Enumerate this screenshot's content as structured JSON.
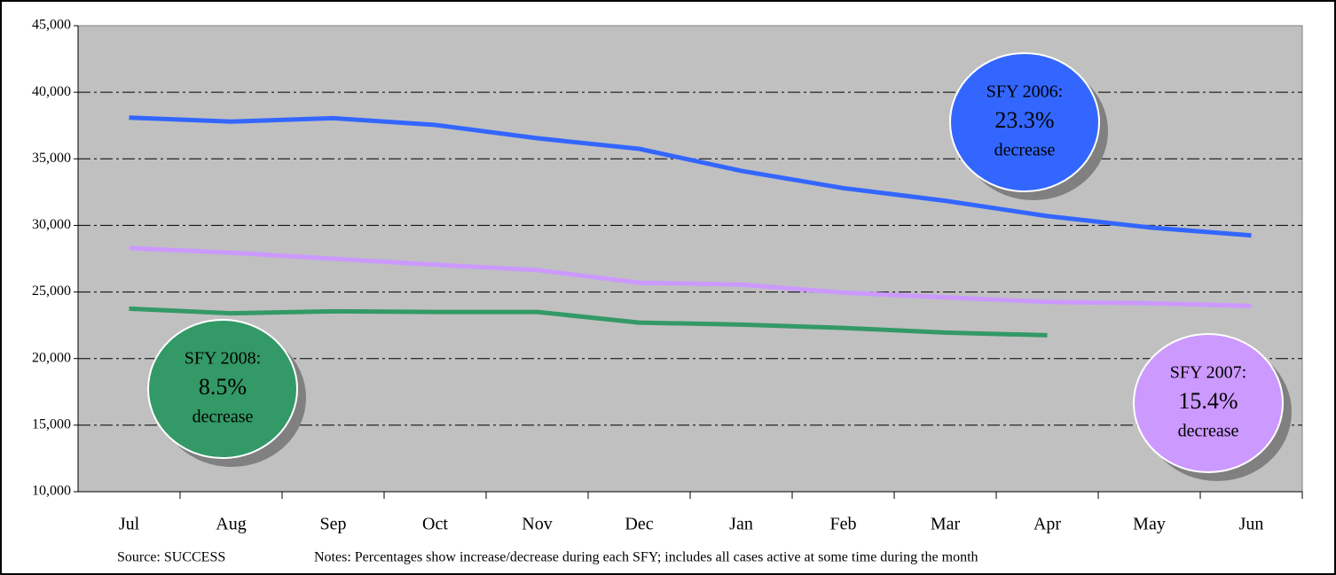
{
  "chart_data": {
    "type": "line",
    "categories": [
      "Jul",
      "Aug",
      "Sep",
      "Oct",
      "Nov",
      "Dec",
      "Jan",
      "Feb",
      "Mar",
      "Apr",
      "May",
      "Jun"
    ],
    "series": [
      {
        "color": "#3366ff",
        "values": [
          38100,
          37800,
          38050,
          37550,
          36550,
          35750,
          34100,
          32800,
          31850,
          30700,
          29850,
          29250
        ]
      },
      {
        "color": "#cc99ff",
        "values": [
          28300,
          27950,
          27500,
          27050,
          26650,
          25700,
          25550,
          24950,
          24600,
          24250,
          24150,
          23950
        ]
      },
      {
        "color": "#339966",
        "values": [
          23750,
          23400,
          23550,
          23500,
          23500,
          22700,
          22550,
          22300,
          21950,
          21750,
          null,
          null
        ]
      }
    ],
    "ylim": [
      10000,
      45000
    ],
    "yticks": [
      {
        "value": 10000,
        "label": "10,000"
      },
      {
        "value": 15000,
        "label": "15,000"
      },
      {
        "value": 20000,
        "label": "20,000"
      },
      {
        "value": 25000,
        "label": "25,000"
      },
      {
        "value": 30000,
        "label": "30,000"
      },
      {
        "value": 35000,
        "label": "35,000"
      },
      {
        "value": 40000,
        "label": "40,000"
      },
      {
        "value": 45000,
        "label": "45,000"
      }
    ],
    "grid": true,
    "annotations": [
      {
        "lines": [
          "SFY 2006:",
          "23.3%",
          "decrease"
        ],
        "color": "#3366ff"
      },
      {
        "lines": [
          "SFY 2007:",
          "15.4%",
          "decrease"
        ],
        "color": "#cc99ff"
      },
      {
        "lines": [
          "SFY 2008:",
          "8.5%",
          "decrease"
        ],
        "color": "#339966"
      }
    ],
    "source": "Source: SUCCESS",
    "notes": "Notes: Percentages show increase/decrease during each SFY;  includes all cases active at some time during  the month"
  }
}
